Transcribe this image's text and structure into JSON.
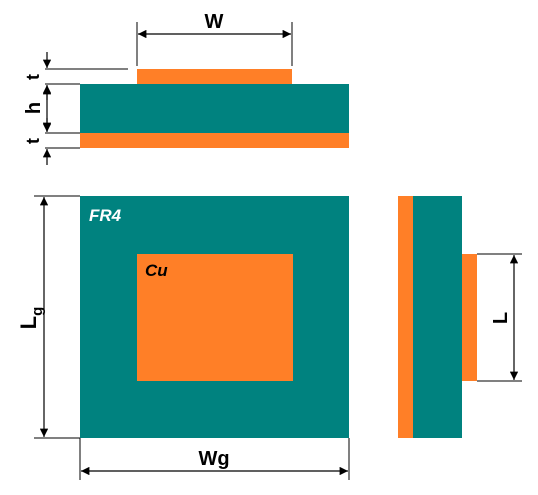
{
  "colors": {
    "substrate": "#00827F",
    "copper": "#FF7F27",
    "line": "#000000",
    "background": "#FFFFFF",
    "fr4_text": "#FFFFFF",
    "cu_text": "#000000"
  },
  "labels": {
    "patch_width": "W",
    "thickness_top": "t",
    "substrate_height": "h",
    "thickness_bottom": "t",
    "ground_length": "L",
    "ground_length_subscript": "g",
    "ground_width": "Wg",
    "patch_length": "L",
    "substrate_material": "FR4",
    "patch_material": "Cu"
  }
}
